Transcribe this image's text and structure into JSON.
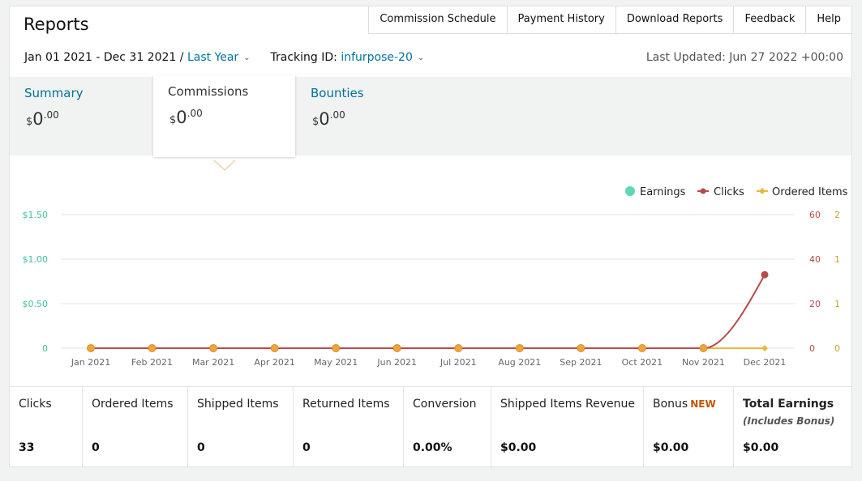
{
  "header": {
    "title": "Reports",
    "nav": [
      "Commission Schedule",
      "Payment History",
      "Download Reports",
      "Feedback",
      "Help"
    ],
    "date_range": "Jan 01 2021 - Dec 31 2021 /",
    "period_selector": "Last Year",
    "tracking_label": "Tracking ID:",
    "tracking_id": "infurpose-20",
    "last_updated": "Last Updated: Jun 27 2022 +00:00"
  },
  "tabs": [
    {
      "label": "Summary",
      "currency": "$",
      "whole": "0",
      "cents": ".00",
      "active": false
    },
    {
      "label": "Commissions",
      "currency": "$",
      "whole": "0",
      "cents": ".00",
      "active": true
    },
    {
      "label": "Bounties",
      "currency": "$",
      "whole": "0",
      "cents": ".00",
      "active": false
    }
  ],
  "chart_data": {
    "type": "line",
    "categories": [
      "Jan 2021",
      "Feb 2021",
      "Mar 2021",
      "Apr 2021",
      "May 2021",
      "Jun 2021",
      "Jul 2021",
      "Aug 2021",
      "Sep 2021",
      "Oct 2021",
      "Nov 2021",
      "Dec 2021"
    ],
    "series": [
      {
        "name": "Earnings",
        "axis": "left",
        "color": "#5fd6b8",
        "values": [
          0,
          0,
          0,
          0,
          0,
          0,
          0,
          0,
          0,
          0,
          0,
          0
        ]
      },
      {
        "name": "Clicks",
        "axis": "right1",
        "color": "#b84a4a",
        "values": [
          0,
          0,
          0,
          0,
          0,
          0,
          0,
          0,
          0,
          0,
          0,
          33
        ]
      },
      {
        "name": "Ordered Items",
        "axis": "right2",
        "color": "#e8b93a",
        "values": [
          0,
          0,
          0,
          0,
          0,
          0,
          0,
          0,
          0,
          0,
          0,
          0
        ]
      }
    ],
    "left_axis": {
      "ticks": [
        "$1.50",
        "$1.00",
        "$0.50",
        "0"
      ],
      "ylim": [
        0,
        1.5
      ],
      "color": "#3cbfa0"
    },
    "right_axis_1": {
      "ticks": [
        "60",
        "40",
        "20",
        "0"
      ],
      "ylim": [
        0,
        60
      ],
      "color": "#b84a4a"
    },
    "right_axis_2": {
      "ticks": [
        "2",
        "1",
        "1",
        "0"
      ],
      "color": "#c9a227"
    },
    "legend_position": "top-right",
    "grid": true
  },
  "metrics": [
    {
      "label": "Clicks",
      "value": "33"
    },
    {
      "label": "Ordered Items",
      "value": "0"
    },
    {
      "label": "Shipped Items",
      "value": "0"
    },
    {
      "label": "Returned Items",
      "value": "0"
    },
    {
      "label": "Conversion",
      "value": "0.00%"
    },
    {
      "label": "Shipped Items Revenue",
      "value": "$0.00"
    },
    {
      "label": "Bonus",
      "badge": "NEW",
      "value": "$0.00"
    },
    {
      "label": "Total Earnings",
      "sublabel": "(Includes Bonus)",
      "value": "$0.00"
    }
  ],
  "icons": {
    "chevron": "chevron-down-icon",
    "tab_pointer": "caret-down-icon"
  }
}
